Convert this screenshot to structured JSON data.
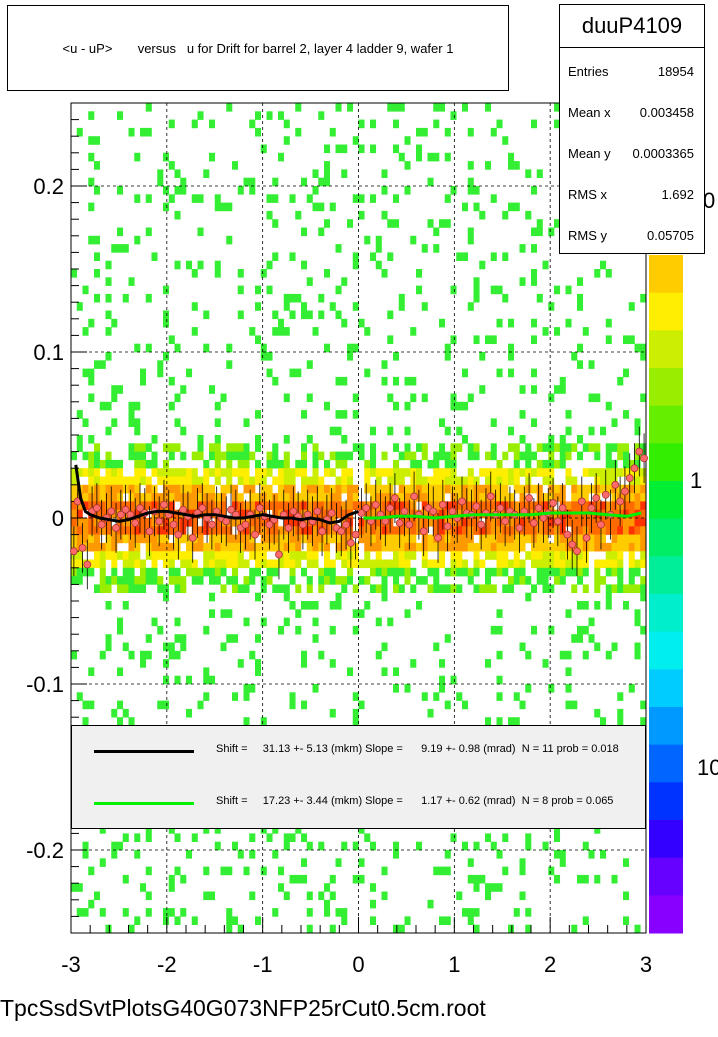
{
  "footer_text": "TpcSsdSvtPlotsG40G073NFP25rCut0.5cm.root",
  "chart_data": {
    "type": "scatter",
    "title": "<u - uP>       versus   u for Drift for barrel 2, layer 4 ladder 9, wafer 1",
    "xlabel": "",
    "ylabel": "",
    "xlim": [
      -3,
      3
    ],
    "ylim": [
      -0.25,
      0.25
    ],
    "x_ticks": [
      "-3",
      "-2",
      "-1",
      "0",
      "1",
      "2",
      "3"
    ],
    "y_ticks": [
      "-0.2",
      "-0.1",
      "0",
      "0.1",
      "0.2"
    ],
    "grid": true,
    "color_scale": {
      "labels": [
        "10",
        "1",
        "0"
      ],
      "note_visible_label_fragment": "0"
    },
    "stats": {
      "name": "duuP4109",
      "entries": [
        {
          "label": "Entries",
          "value": "18954"
        },
        {
          "label": "Mean x",
          "value": "0.003458"
        },
        {
          "label": "Mean y",
          "value": "0.0003365"
        },
        {
          "label": "RMS x",
          "value": "1.692"
        },
        {
          "label": "RMS y",
          "value": "0.05705"
        }
      ]
    },
    "legend": [
      {
        "color": "#000000",
        "text": "Shift =     31.13 +- 5.13 (mkm) Slope =      9.19 +- 0.98 (mrad)  N = 11 prob = 0.018"
      },
      {
        "color": "#00ee00",
        "text": "Shift =     17.23 +- 3.44 (mkm) Slope =      1.17 +- 0.62 (mrad)  N = 8 prob = 0.065"
      }
    ],
    "fit_black": {
      "x": [
        -2.95,
        -2.9,
        -2.85,
        -2.8,
        -2.7,
        -2.6,
        -2.5,
        -2.4,
        -2.3,
        -2.2,
        -2.1,
        -2.0,
        -1.9,
        -1.8,
        -1.7,
        -1.6,
        -1.5,
        -1.4,
        -1.3,
        -1.2,
        -1.1,
        -1.0,
        -0.9,
        -0.8,
        -0.7,
        -0.6,
        -0.5,
        -0.4,
        -0.3,
        -0.2,
        -0.1,
        0.0
      ],
      "y": [
        0.032,
        0.012,
        0.004,
        0.002,
        0.0,
        -0.001,
        -0.002,
        -0.001,
        0.001,
        0.003,
        0.004,
        0.004,
        0.003,
        0.002,
        0.001,
        0.002,
        0.002,
        0.001,
        0.0,
        0.0,
        0.001,
        0.002,
        0.001,
        0.0,
        0.0,
        -0.001,
        0.0,
        -0.001,
        -0.003,
        -0.002,
        0.002,
        0.004
      ]
    },
    "fit_green": {
      "x": [
        0.05,
        0.2,
        0.4,
        0.6,
        0.8,
        1.0,
        1.2,
        1.4,
        1.6,
        1.8,
        2.0,
        2.2,
        2.4,
        2.6,
        2.8,
        2.95
      ],
      "y": [
        0.0,
        0.0,
        0.001,
        0.001,
        0.0,
        0.001,
        0.002,
        0.002,
        0.002,
        0.002,
        0.003,
        0.003,
        0.003,
        0.002,
        0.001,
        0.003
      ]
    },
    "profile_points": {
      "x": [
        -2.97,
        -2.93,
        -2.88,
        -2.83,
        -2.78,
        -2.73,
        -2.68,
        -2.63,
        -2.58,
        -2.53,
        -2.48,
        -2.43,
        -2.38,
        -2.33,
        -2.28,
        -2.23,
        -2.18,
        -2.13,
        -2.08,
        -2.03,
        -1.98,
        -1.93,
        -1.88,
        -1.83,
        -1.78,
        -1.73,
        -1.68,
        -1.63,
        -1.58,
        -1.53,
        -1.48,
        -1.43,
        -1.38,
        -1.33,
        -1.28,
        -1.23,
        -1.18,
        -1.13,
        -1.08,
        -1.03,
        -0.98,
        -0.93,
        -0.88,
        -0.83,
        -0.78,
        -0.73,
        -0.68,
        -0.63,
        -0.58,
        -0.53,
        -0.48,
        -0.43,
        -0.38,
        -0.33,
        -0.28,
        -0.23,
        -0.18,
        -0.13,
        -0.08,
        -0.03,
        0.03,
        0.08,
        0.13,
        0.18,
        0.23,
        0.28,
        0.33,
        0.38,
        0.43,
        0.48,
        0.53,
        0.58,
        0.63,
        0.68,
        0.73,
        0.78,
        0.83,
        0.88,
        0.93,
        0.98,
        1.03,
        1.08,
        1.13,
        1.18,
        1.23,
        1.28,
        1.33,
        1.38,
        1.43,
        1.48,
        1.53,
        1.58,
        1.63,
        1.68,
        1.73,
        1.78,
        1.83,
        1.88,
        1.93,
        1.98,
        2.03,
        2.08,
        2.13,
        2.18,
        2.23,
        2.28,
        2.33,
        2.38,
        2.43,
        2.48,
        2.53,
        2.58,
        2.63,
        2.68,
        2.73,
        2.78,
        2.83,
        2.88,
        2.93,
        2.98
      ],
      "y": [
        -0.02,
        0.01,
        -0.018,
        -0.028,
        0.004,
        0.006,
        -0.004,
        0.0,
        0.004,
        -0.006,
        0.002,
        0.005,
        0.002,
        -0.003,
        0.006,
        0.003,
        -0.008,
        0.004,
        -0.002,
        0.008,
        0.002,
        -0.004,
        -0.01,
        0.005,
        0.001,
        -0.012,
        0.003,
        0.006,
        0.0,
        -0.004,
        0.004,
        0.0,
        -0.002,
        0.005,
        0.002,
        -0.006,
        -0.004,
        0.002,
        -0.01,
        0.006,
        0.001,
        -0.004,
        -0.001,
        -0.022,
        0.002,
        -0.006,
        0.004,
        0.001,
        -0.004,
        0.002,
        -0.002,
        0.004,
        -0.008,
        -0.001,
        0.003,
        -0.006,
        -0.008,
        -0.004,
        -0.015,
        -0.01,
        0.003,
        0.006,
        -0.002,
        0.008,
        0.002,
        -0.002,
        0.006,
        0.012,
        -0.003,
        0.004,
        -0.004,
        0.013,
        0.002,
        -0.008,
        0.006,
        0.004,
        -0.012,
        0.008,
        -0.005,
        0.004,
        0.0,
        0.01,
        0.003,
        0.002,
        0.007,
        -0.004,
        0.003,
        0.013,
        0.002,
        0.006,
        -0.002,
        0.004,
        0.002,
        -0.006,
        0.004,
        0.012,
        -0.003,
        0.006,
        0.0,
        0.003,
        0.009,
        -0.002,
        0.006,
        -0.01,
        -0.016,
        -0.02,
        0.01,
        -0.012,
        0.006,
        0.012,
        -0.004,
        0.014,
        0.002,
        0.02,
        0.01,
        0.016,
        0.024,
        0.03,
        0.04,
        0.036
      ],
      "err": 0.015
    }
  }
}
